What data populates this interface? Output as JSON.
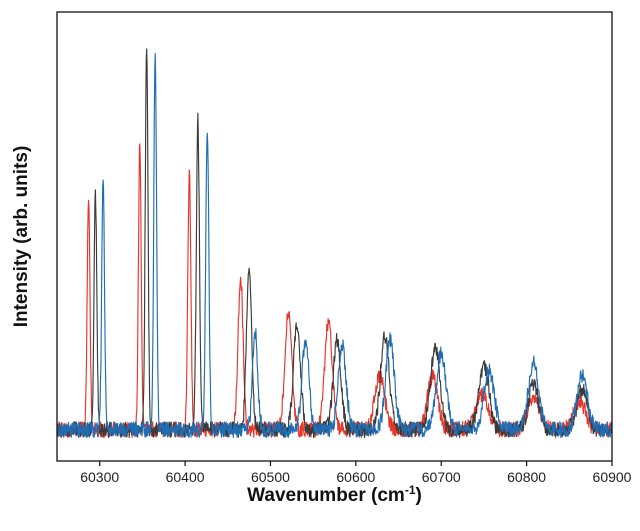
{
  "chart_data": {
    "type": "line",
    "title": "",
    "xlabel_main": "Wavenumber (cm",
    "xlabel_sup": "-1",
    "xlabel_close": ")",
    "ylabel": "Intensity (arb. units)",
    "xlim": [
      60250,
      60900
    ],
    "ylim": [
      0,
      1
    ],
    "x_ticks": [
      60300,
      60400,
      60500,
      60600,
      60700,
      60800,
      60900
    ],
    "y_ticks_labeled": false,
    "grid": false,
    "legend": "none",
    "baseline": 0.07,
    "series": [
      {
        "color": "#e8352a",
        "peaks": [
          {
            "x": 60287,
            "y": 0.52,
            "w": 1.6
          },
          {
            "x": 60347,
            "y": 0.64,
            "w": 1.6
          },
          {
            "x": 60405,
            "y": 0.57,
            "w": 1.8
          },
          {
            "x": 60465,
            "y": 0.34,
            "w": 3.0
          },
          {
            "x": 60521,
            "y": 0.26,
            "w": 4.0
          },
          {
            "x": 60568,
            "y": 0.24,
            "w": 4.5
          },
          {
            "x": 60628,
            "y": 0.12,
            "w": 6.0
          },
          {
            "x": 60690,
            "y": 0.12,
            "w": 6.0
          },
          {
            "x": 60748,
            "y": 0.08,
            "w": 7.0
          },
          {
            "x": 60808,
            "y": 0.07,
            "w": 7.0
          },
          {
            "x": 60862,
            "y": 0.06,
            "w": 7.0
          }
        ]
      },
      {
        "color": "#3a3a3a",
        "peaks": [
          {
            "x": 60295,
            "y": 0.53,
            "w": 1.6
          },
          {
            "x": 60355,
            "y": 0.86,
            "w": 1.6
          },
          {
            "x": 60415,
            "y": 0.69,
            "w": 1.8
          },
          {
            "x": 60475,
            "y": 0.37,
            "w": 3.0
          },
          {
            "x": 60531,
            "y": 0.24,
            "w": 4.0
          },
          {
            "x": 60578,
            "y": 0.2,
            "w": 4.5
          },
          {
            "x": 60634,
            "y": 0.21,
            "w": 5.0
          },
          {
            "x": 60693,
            "y": 0.18,
            "w": 5.5
          },
          {
            "x": 60750,
            "y": 0.14,
            "w": 6.0
          },
          {
            "x": 60808,
            "y": 0.1,
            "w": 6.0
          },
          {
            "x": 60865,
            "y": 0.09,
            "w": 6.0
          }
        ]
      },
      {
        "color": "#1f6db5",
        "peaks": [
          {
            "x": 60304,
            "y": 0.56,
            "w": 1.6
          },
          {
            "x": 60365,
            "y": 0.85,
            "w": 1.6
          },
          {
            "x": 60426,
            "y": 0.67,
            "w": 1.8
          },
          {
            "x": 60482,
            "y": 0.22,
            "w": 3.0
          },
          {
            "x": 60541,
            "y": 0.2,
            "w": 4.0
          },
          {
            "x": 60584,
            "y": 0.19,
            "w": 4.5
          },
          {
            "x": 60640,
            "y": 0.2,
            "w": 5.0
          },
          {
            "x": 60700,
            "y": 0.17,
            "w": 5.5
          },
          {
            "x": 60756,
            "y": 0.13,
            "w": 6.0
          },
          {
            "x": 60808,
            "y": 0.15,
            "w": 6.0
          },
          {
            "x": 60865,
            "y": 0.12,
            "w": 6.0
          }
        ]
      }
    ]
  }
}
